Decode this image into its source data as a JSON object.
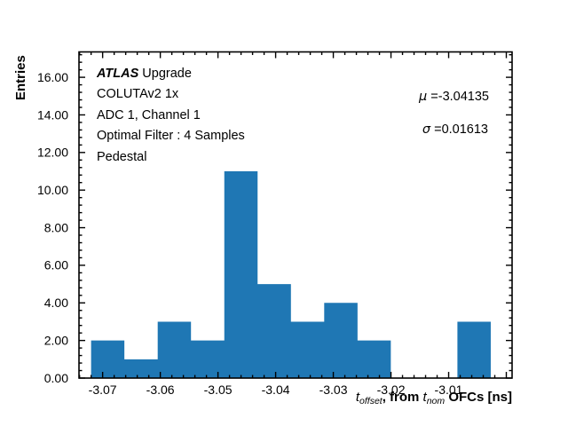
{
  "chart_data": {
    "type": "bar",
    "subtype": "histogram",
    "title": "",
    "xlabel": "t_offset, from t_nom OFCs [ns]",
    "ylabel": "Entries",
    "bar_color": "#1f77b4",
    "axis_color": "#000000",
    "grid": false,
    "legend": null,
    "bin_edges": [
      -3.072,
      -3.06623,
      -3.06045,
      -3.05468,
      -3.0489,
      -3.04313,
      -3.03735,
      -3.03158,
      -3.0258,
      -3.02003,
      -3.01425,
      -3.00848,
      -3.0027
    ],
    "counts": [
      2,
      1,
      3,
      2,
      11,
      5,
      3,
      4,
      2,
      0,
      0,
      3
    ],
    "xlim": [
      -3.0741,
      -2.999
    ],
    "ylim": [
      0,
      17.35
    ],
    "xticks": {
      "values": [
        -3.07,
        -3.06,
        -3.05,
        -3.04,
        -3.03,
        -3.02,
        -3.01,
        -3.0
      ],
      "labels": [
        "-3.07",
        "-3.06",
        "-3.05",
        "-3.04",
        "-3.03",
        "-3.02",
        "-3.01",
        ""
      ]
    },
    "yticks": {
      "values": [
        0,
        2,
        4,
        6,
        8,
        10,
        12,
        14,
        16
      ],
      "labels": [
        "0.00",
        "2.00",
        "4.00",
        "6.00",
        "8.00",
        "10.00",
        "12.00",
        "14.00",
        "16.00"
      ]
    },
    "minor_x_step": 0.002,
    "minor_y_step": 0.4
  },
  "annotations": {
    "info": {
      "brand": "ATLAS",
      "brand_suffix": " Upgrade",
      "lines": [
        "COLUTAv2 1x",
        "ADC 1, Channel 1",
        "Optimal Filter : 4 Samples",
        "Pedestal"
      ]
    },
    "stats": {
      "mu_symbol": "μ",
      "mu_value": "=-3.04135",
      "sigma_symbol": "σ",
      "sigma_value": "=0.01613"
    }
  },
  "axis_labels": {
    "y": "Entries",
    "x_parts": {
      "var1": "t",
      "sub1": "offset",
      "mid": ", from ",
      "var2": "t",
      "sub2": "nom",
      "tail": " OFCs [ns]"
    }
  }
}
